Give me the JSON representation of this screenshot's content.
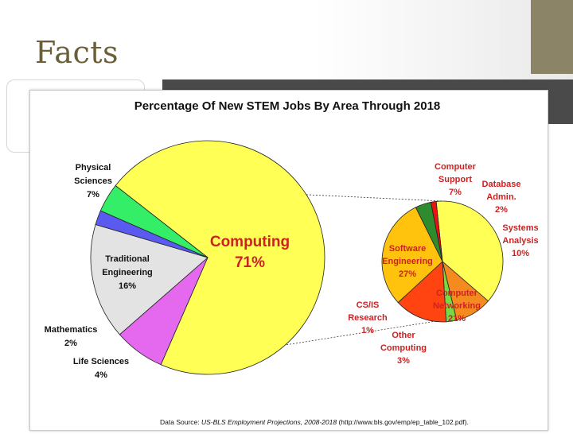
{
  "slide": {
    "title": "Facts"
  },
  "chart_data": {
    "type": "pie",
    "title": "Percentage Of New STEM Jobs By Area Through 2018",
    "main_pie": [
      {
        "label_lines": [
          "Computing",
          "71%"
        ],
        "value": 71,
        "color": "#ffff55"
      },
      {
        "label_lines": [
          "Physical",
          "Sciences",
          "7%"
        ],
        "value": 7,
        "color": "#e469ee"
      },
      {
        "label_lines": [
          "Traditional",
          "Engineering",
          "16%"
        ],
        "value": 16,
        "color": "#e3e3e3"
      },
      {
        "label_lines": [
          "Mathematics",
          "2%"
        ],
        "value": 2,
        "color": "#5a5af0"
      },
      {
        "label_lines": [
          "Life Sciences",
          "4%"
        ],
        "value": 4,
        "color": "#33ee66"
      }
    ],
    "computing_breakdown": [
      {
        "label_lines": [
          "Software",
          "Engineering",
          "27%"
        ],
        "value": 27,
        "color": "#ffff55"
      },
      {
        "label_lines": [
          "Computer",
          "Support",
          "7%"
        ],
        "value": 7,
        "color": "#f58a1f"
      },
      {
        "label_lines": [
          "Database",
          "Admin.",
          "2%"
        ],
        "value": 2,
        "color": "#77d944"
      },
      {
        "label_lines": [
          "Systems",
          "Analysis",
          "10%"
        ],
        "value": 10,
        "color": "#ff4411"
      },
      {
        "label_lines": [
          "Computer",
          "Networking",
          "21%"
        ],
        "value": 21,
        "color": "#ffc20d"
      },
      {
        "label_lines": [
          "Other",
          "Computing",
          "3%"
        ],
        "value": 3,
        "color": "#2e8b2e"
      },
      {
        "label_lines": [
          "CS/IS",
          "Research",
          "1%"
        ],
        "value": 1,
        "color": "#ee1111"
      }
    ],
    "source": {
      "prefix": "Data Source: ",
      "italic": "US-BLS Employment Projections, 2008-2018",
      "suffix": " (http://www.bls.gov/emp/ep_table_102.pdf)."
    },
    "colors": {
      "label_dark": "#111111",
      "label_red": "#cc2222"
    }
  }
}
